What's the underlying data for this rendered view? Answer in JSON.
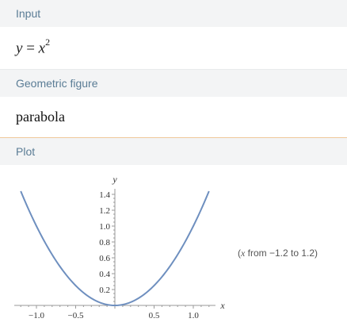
{
  "pods": {
    "input": {
      "title": "Input",
      "expr_lhs": "y",
      "expr_eq": " = ",
      "expr_var": "x",
      "expr_exp": "2"
    },
    "geometric_figure": {
      "title": "Geometric figure",
      "value": "parabola"
    },
    "plot": {
      "title": "Plot",
      "range_prefix": "(",
      "range_var": "x",
      "range_text": " from −1.2 to 1.2)"
    }
  },
  "colors": {
    "header_bg": "#f3f4f5",
    "header_text": "#5a7c95",
    "curve": "#6e8fbf",
    "plot_separator": "#f0c89b"
  },
  "chart_data": {
    "type": "line",
    "function": "y = x^2",
    "xlim": [
      -1.2,
      1.2
    ],
    "ylim": [
      0,
      1.5
    ],
    "xlabel": "x",
    "ylabel": "y",
    "x_ticks": [
      "−1.0",
      "−0.5",
      "0.5",
      "1.0"
    ],
    "x_tick_values": [
      -1.0,
      -0.5,
      0.5,
      1.0
    ],
    "y_ticks": [
      "0.2",
      "0.4",
      "0.6",
      "0.8",
      "1.0",
      "1.2",
      "1.4"
    ],
    "y_tick_values": [
      0.2,
      0.4,
      0.6,
      0.8,
      1.0,
      1.2,
      1.4
    ],
    "series": [
      {
        "x": [
          -1.2,
          -0.9,
          -0.6,
          -0.3,
          0,
          0.3,
          0.6,
          0.9,
          1.2
        ],
        "y": [
          1.44,
          0.81,
          0.36,
          0.09,
          0,
          0.09,
          0.36,
          0.81,
          1.44
        ]
      }
    ],
    "grid": false
  }
}
